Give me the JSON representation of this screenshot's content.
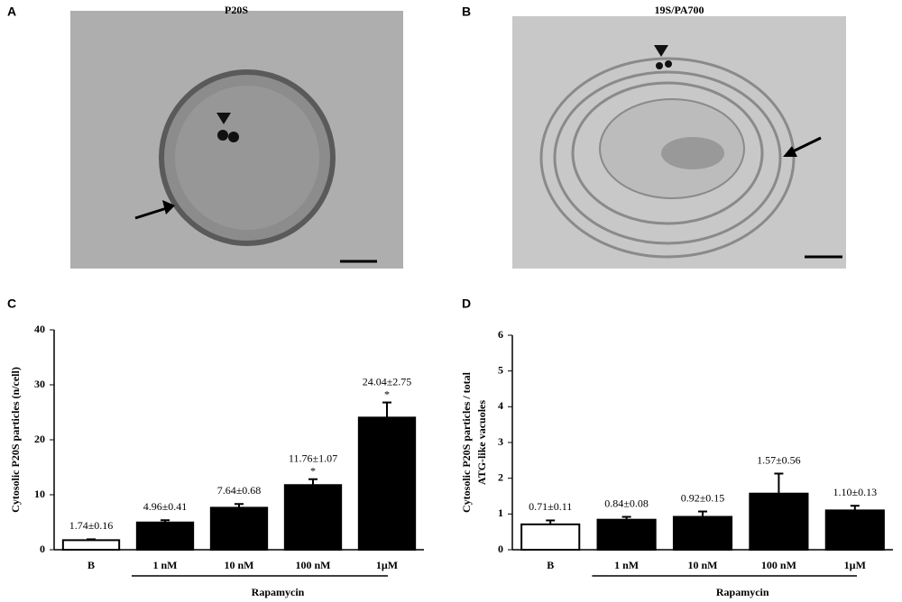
{
  "panels": [
    {
      "label": "A",
      "title": "P20S"
    },
    {
      "label": "B",
      "title": "19S/PA700"
    }
  ],
  "chart_data": [
    {
      "type": "bar",
      "panel_label": "C",
      "ylabel": [
        "Cytosolic P20S particles (n/cell)"
      ],
      "categories": [
        "B",
        "1 nM",
        "10 nM",
        "100 nM",
        "1µM"
      ],
      "values": [
        1.74,
        4.96,
        7.64,
        11.76,
        24.04
      ],
      "errors": [
        0.16,
        0.41,
        0.68,
        1.07,
        2.75
      ],
      "value_labels": [
        "1.74±0.16",
        "4.96±0.41",
        "7.64±0.68",
        "11.76±1.07",
        "24.04±2.75"
      ],
      "significance": [
        null,
        null,
        null,
        "*",
        "*"
      ],
      "colors": [
        "#ffffff",
        "#000000",
        "#000000",
        "#000000",
        "#000000"
      ],
      "group_label": "Rapamycin",
      "ylim": [
        0,
        40
      ],
      "yticks": [
        0,
        10,
        20,
        30,
        40
      ]
    },
    {
      "type": "bar",
      "panel_label": "D",
      "ylabel": [
        "Cytosolic P20S particles / total",
        "ATG-like vacuoles"
      ],
      "categories": [
        "B",
        "1 nM",
        "10 nM",
        "100 nM",
        "1µM"
      ],
      "values": [
        0.71,
        0.84,
        0.92,
        1.57,
        1.1
      ],
      "errors": [
        0.11,
        0.08,
        0.15,
        0.56,
        0.13
      ],
      "value_labels": [
        "0.71±0.11",
        "0.84±0.08",
        "0.92±0.15",
        "1.57±0.56",
        "1.10±0.13"
      ],
      "colors": [
        "#ffffff",
        "#000000",
        "#000000",
        "#000000",
        "#000000"
      ],
      "group_label": "Rapamycin",
      "ylim": [
        0,
        6
      ],
      "yticks": [
        0,
        1,
        2,
        3,
        4,
        5,
        6
      ]
    }
  ]
}
